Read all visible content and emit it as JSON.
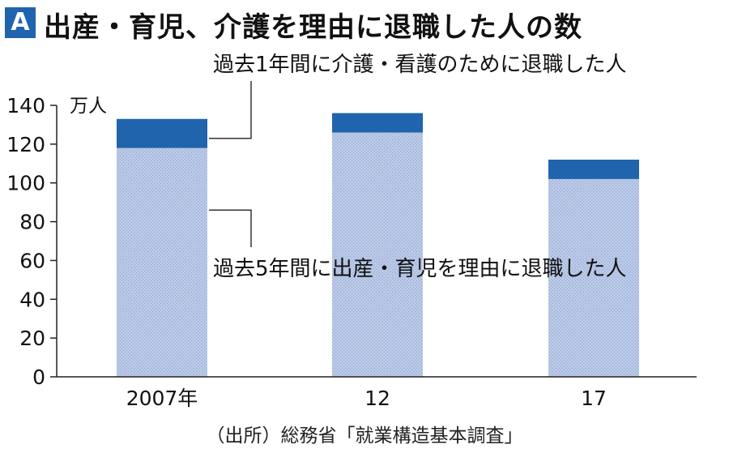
{
  "header": {
    "badge": "A",
    "title": "出産・育児、介護を理由に退職した人の数"
  },
  "source": "（出所）総務省「就業構造基本調査」",
  "colors": {
    "badge": "#1f64ad",
    "childcare": "#b9c8e6",
    "care": "#1f64ad",
    "axis": "#222222"
  },
  "chart_data": {
    "type": "bar",
    "stacked": true,
    "categories": [
      "2007年",
      "12",
      "17"
    ],
    "series": [
      {
        "name": "過去5年間に出産・育児を理由に退職した人",
        "values": [
          118,
          126,
          102
        ]
      },
      {
        "name": "過去1年間に介護・看護のために退職した人",
        "values": [
          15,
          10,
          10
        ]
      }
    ],
    "ylabel": "万人",
    "ylim": [
      0,
      140
    ],
    "yticks": [
      0,
      20,
      40,
      60,
      80,
      100,
      120,
      140
    ],
    "grid": false,
    "annotations": [
      "過去1年間に介護・看護のために退職した人",
      "過去5年間に出産・育児を理由に退職した人"
    ]
  }
}
